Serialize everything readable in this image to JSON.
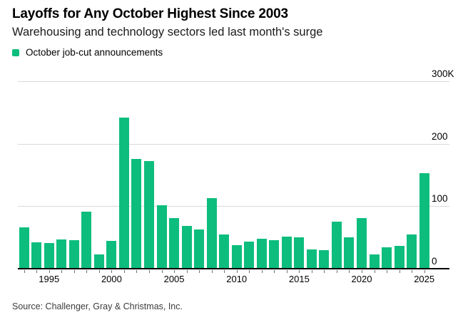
{
  "header": {
    "title": "Layoffs for Any October Highest Since 2003",
    "subtitle": "Warehousing and technology sectors led last month's surge"
  },
  "legend": {
    "label": "October job-cut announcements",
    "swatch_color": "#0dbd7e"
  },
  "source": "Source: Challenger, Gray & Christmas, Inc.",
  "colors": {
    "bar_green": "#0dbd7e",
    "gridline_gray": "#d9d9d9",
    "axis_black": "#000000",
    "tick_gray": "#6f6f6f",
    "source_gray": "#3c3c3c"
  },
  "chart_data": {
    "type": "bar",
    "title": "Layoffs for Any October Highest Since 2003",
    "subtitle": "Warehousing and technology sectors led last month's surge",
    "series_name": "October job-cut announcements",
    "unit": "thousands of announcements",
    "categories": [
      1993,
      1994,
      1995,
      1996,
      1997,
      1998,
      1999,
      2000,
      2001,
      2002,
      2003,
      2004,
      2005,
      2006,
      2007,
      2008,
      2009,
      2010,
      2011,
      2012,
      2013,
      2014,
      2015,
      2016,
      2017,
      2018,
      2019,
      2020,
      2021,
      2022,
      2023,
      2024,
      2025
    ],
    "values": [
      66,
      42,
      41,
      47,
      46,
      91,
      23,
      44,
      242,
      176,
      172,
      102,
      81,
      69,
      63,
      113,
      55,
      38,
      43,
      48,
      46,
      51,
      50,
      31,
      30,
      75,
      50,
      81,
      23,
      34,
      36,
      55,
      153
    ],
    "ylim": [
      0,
      300
    ],
    "yticks": [
      {
        "value": 300,
        "label": "300K"
      },
      {
        "value": 200,
        "label": "200"
      },
      {
        "value": 100,
        "label": "100"
      },
      {
        "value": 0,
        "label": "0"
      }
    ],
    "xtick_years": [
      1995,
      2000,
      2005,
      2010,
      2015,
      2020,
      2025
    ],
    "bar_color": "#0dbd7e",
    "grid": true,
    "legend_position": "top-left",
    "value_axis_side": "right",
    "source": "Source: Challenger, Gray & Christmas, Inc."
  }
}
